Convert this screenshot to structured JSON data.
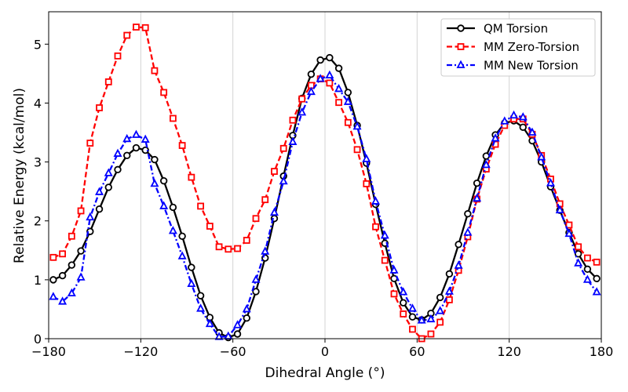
{
  "chart_data": {
    "type": "line",
    "title": "",
    "xlabel": "Dihedral Angle (°)",
    "ylabel": "Relative Energy (kcal/mol)",
    "xlim": [
      -180,
      180
    ],
    "ylim": [
      0,
      5.55
    ],
    "xticks": [
      -180,
      -120,
      -60,
      0,
      60,
      120,
      180
    ],
    "xtick_labels": [
      "−180",
      "−120",
      "−60",
      "0",
      "60",
      "120",
      "180"
    ],
    "yticks": [
      0,
      1,
      2,
      3,
      4,
      5
    ],
    "ytick_labels": [
      "0",
      "1",
      "2",
      "3",
      "4",
      "5"
    ],
    "grid": "vertical",
    "legend_position": "top-right",
    "x": [
      -177,
      -171,
      -165,
      -159,
      -153,
      -147,
      -141,
      -135,
      -129,
      -123,
      -117,
      -111,
      -105,
      -99,
      -93,
      -87,
      -81,
      -75,
      -69,
      -63,
      -57,
      -51,
      -45,
      -39,
      -33,
      -27,
      -21,
      -15,
      -9,
      -3,
      3,
      9,
      15,
      21,
      27,
      33,
      39,
      45,
      51,
      57,
      63,
      69,
      75,
      81,
      87,
      93,
      99,
      105,
      111,
      117,
      123,
      129,
      135,
      141,
      147,
      153,
      159,
      165,
      171,
      177
    ],
    "series": [
      {
        "name": "QM Torsion",
        "color": "#000000",
        "marker": "circle",
        "dash": "solid",
        "values": [
          1.0,
          1.07,
          1.25,
          1.49,
          1.82,
          2.2,
          2.57,
          2.87,
          3.11,
          3.24,
          3.2,
          3.04,
          2.68,
          2.23,
          1.74,
          1.21,
          0.73,
          0.36,
          0.1,
          0.02,
          0.08,
          0.35,
          0.8,
          1.37,
          2.04,
          2.76,
          3.45,
          4.08,
          4.49,
          4.73,
          4.77,
          4.59,
          4.18,
          3.62,
          2.98,
          2.28,
          1.62,
          1.02,
          0.61,
          0.37,
          0.32,
          0.43,
          0.7,
          1.1,
          1.6,
          2.12,
          2.64,
          3.1,
          3.46,
          3.66,
          3.7,
          3.59,
          3.36,
          3.0,
          2.58,
          2.18,
          1.8,
          1.44,
          1.18,
          1.02
        ]
      },
      {
        "name": "MM Zero-Torsion",
        "color": "#ff0000",
        "marker": "square",
        "dash": "dashed",
        "values": [
          1.38,
          1.44,
          1.74,
          2.17,
          3.32,
          3.92,
          4.36,
          4.8,
          5.15,
          5.29,
          5.28,
          4.55,
          4.18,
          3.74,
          3.28,
          2.74,
          2.25,
          1.91,
          1.56,
          1.52,
          1.53,
          1.67,
          2.04,
          2.36,
          2.84,
          3.23,
          3.71,
          4.07,
          4.3,
          4.41,
          4.34,
          4.01,
          3.67,
          3.21,
          2.63,
          1.9,
          1.33,
          0.76,
          0.42,
          0.16,
          0.0,
          0.08,
          0.28,
          0.66,
          1.16,
          1.73,
          2.37,
          2.88,
          3.3,
          3.62,
          3.73,
          3.73,
          3.47,
          3.11,
          2.71,
          2.29,
          1.93,
          1.56,
          1.37,
          1.3
        ]
      },
      {
        "name": "MM New Torsion",
        "color": "#0000ff",
        "marker": "triangle",
        "dash": "dashdot",
        "values": [
          0.71,
          0.63,
          0.77,
          1.04,
          2.06,
          2.49,
          2.81,
          3.14,
          3.39,
          3.46,
          3.38,
          2.63,
          2.25,
          1.83,
          1.4,
          0.93,
          0.51,
          0.25,
          0.03,
          0.04,
          0.23,
          0.5,
          1.0,
          1.48,
          2.14,
          2.67,
          3.34,
          3.84,
          4.19,
          4.41,
          4.47,
          4.24,
          4.02,
          3.6,
          3.05,
          2.33,
          1.75,
          1.16,
          0.79,
          0.51,
          0.31,
          0.33,
          0.47,
          0.8,
          1.24,
          1.8,
          2.38,
          2.95,
          3.4,
          3.69,
          3.79,
          3.76,
          3.5,
          3.08,
          2.64,
          2.18,
          1.78,
          1.28,
          1.0,
          0.79
        ]
      }
    ]
  }
}
